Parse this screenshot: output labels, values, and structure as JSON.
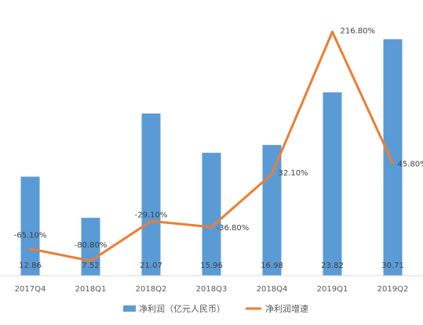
{
  "chart_data": {
    "type": "bar",
    "categories": [
      "2017Q4",
      "2018Q1",
      "2018Q2",
      "2018Q3",
      "2018Q4",
      "2019Q1",
      "2019Q2"
    ],
    "series": [
      {
        "name": "净利润（亿元人民币）",
        "type": "bar",
        "axis": "left",
        "values": [
          12.86,
          7.52,
          21.07,
          15.96,
          16.98,
          23.82,
          30.71
        ],
        "labels": [
          "12.86",
          "7.52",
          "21.07",
          "15.96",
          "16.98",
          "23.82",
          "30.71"
        ]
      },
      {
        "name": "净利润增速",
        "type": "line",
        "axis": "right",
        "values": [
          -65.1,
          -80.8,
          -29.1,
          -36.8,
          32.1,
          216.8,
          45.8
        ],
        "labels": [
          "-65.10%",
          "-80.80%",
          "-29.10%",
          "-36.80%",
          "32.10%",
          "216.80%",
          "45.80%"
        ]
      }
    ],
    "y_left_range": [
      0,
      35
    ],
    "y_right_range": [
      -100,
      250
    ],
    "grid": false,
    "legend_position": "bottom",
    "colors": {
      "bar": "#5B9BD5",
      "line": "#ED7D31",
      "axis": "#D9D9D9"
    }
  }
}
